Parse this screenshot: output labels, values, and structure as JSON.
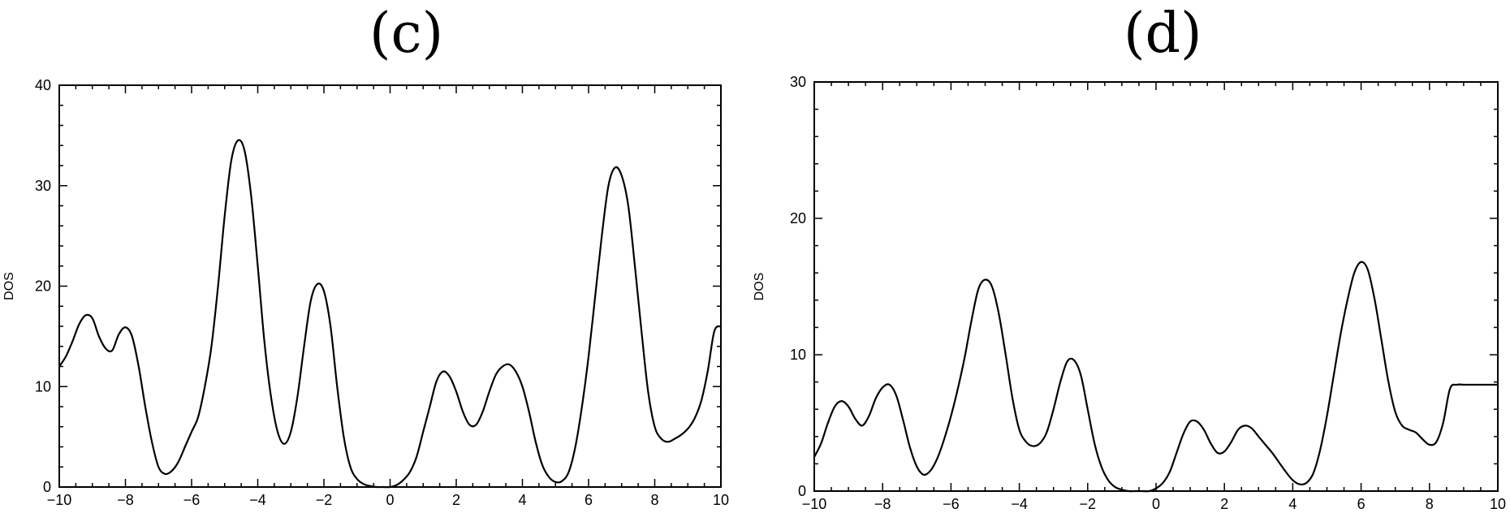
{
  "chart_data": [
    {
      "panel_label": "(c)",
      "type": "line",
      "title": "(c)",
      "xlabel": "",
      "ylabel": "DOS",
      "xlim": [
        -10,
        10
      ],
      "ylim": [
        0,
        40
      ],
      "xticks": [
        -10,
        -8,
        -6,
        -4,
        -2,
        0,
        2,
        4,
        6,
        8,
        10
      ],
      "yticks": [
        0,
        10,
        20,
        30,
        40
      ],
      "grid": false,
      "series": [
        {
          "x": [
            -10,
            -9.8,
            -9.6,
            -9.4,
            -9.2,
            -9.0,
            -8.8,
            -8.6,
            -8.4,
            -8.2,
            -8.0,
            -7.8,
            -7.6,
            -7.4,
            -7.2,
            -7.0,
            -6.8,
            -6.6,
            -6.4,
            -6.2,
            -6.0,
            -5.8,
            -5.6,
            -5.4,
            -5.2,
            -5.0,
            -4.8,
            -4.6,
            -4.4,
            -4.2,
            -4.0,
            -3.8,
            -3.6,
            -3.4,
            -3.2,
            -3.0,
            -2.8,
            -2.6,
            -2.4,
            -2.2,
            -2.0,
            -1.8,
            -1.6,
            -1.4,
            -1.2,
            -1.0,
            -0.8,
            -0.6,
            -0.4,
            -0.2,
            0.0,
            0.2,
            0.4,
            0.6,
            0.8,
            1.0,
            1.2,
            1.4,
            1.6,
            1.8,
            2.0,
            2.2,
            2.4,
            2.6,
            2.8,
            3.0,
            3.2,
            3.4,
            3.6,
            3.8,
            4.0,
            4.2,
            4.4,
            4.6,
            4.8,
            5.0,
            5.2,
            5.4,
            5.6,
            5.8,
            6.0,
            6.2,
            6.4,
            6.6,
            6.8,
            7.0,
            7.2,
            7.4,
            7.6,
            7.8,
            8.0,
            8.2,
            8.4,
            8.6,
            8.8,
            9.0,
            9.2,
            9.4,
            9.6,
            9.8,
            10.0
          ],
          "y": [
            12,
            13,
            14.5,
            16.2,
            17.1,
            16.8,
            15,
            13.8,
            13.6,
            15.2,
            15.9,
            15,
            12,
            8,
            4.5,
            2,
            1.3,
            1.6,
            2.5,
            4,
            5.5,
            7,
            10,
            14,
            20,
            27,
            32.5,
            34.5,
            33.5,
            29,
            22,
            14.5,
            9,
            5.5,
            4.3,
            5.5,
            9,
            14,
            18.5,
            20.2,
            19.5,
            16,
            10,
            5,
            2,
            0.8,
            0.3,
            0.1,
            0,
            0,
            0,
            0.2,
            0.7,
            1.5,
            3,
            5.5,
            8,
            10.5,
            11.5,
            11,
            9.5,
            7.5,
            6.2,
            6.2,
            7.5,
            9.5,
            11.2,
            12,
            12.2,
            11.5,
            10,
            7.5,
            4.5,
            2.2,
            1,
            0.5,
            0.6,
            1.5,
            4,
            8,
            13,
            19,
            25,
            30,
            31.8,
            31,
            28,
            22,
            15.5,
            9.5,
            6,
            4.8,
            4.5,
            4.8,
            5.2,
            5.8,
            6.8,
            8.5,
            11.5,
            15.5,
            16
          ]
        }
      ]
    },
    {
      "panel_label": "(d)",
      "type": "line",
      "title": "(d)",
      "xlabel": "",
      "ylabel": "DOS",
      "xlim": [
        -10,
        10
      ],
      "ylim": [
        0,
        30
      ],
      "xticks": [
        -10,
        -8,
        -6,
        -4,
        -2,
        0,
        2,
        4,
        6,
        8,
        10
      ],
      "yticks": [
        0,
        10,
        20,
        30
      ],
      "grid": false,
      "series": [
        {
          "x": [
            -10,
            -9.8,
            -9.6,
            -9.4,
            -9.2,
            -9.0,
            -8.8,
            -8.6,
            -8.4,
            -8.2,
            -8.0,
            -7.8,
            -7.6,
            -7.4,
            -7.2,
            -7.0,
            -6.8,
            -6.6,
            -6.4,
            -6.2,
            -6.0,
            -5.8,
            -5.6,
            -5.4,
            -5.2,
            -5.0,
            -4.8,
            -4.6,
            -4.4,
            -4.2,
            -4.0,
            -3.8,
            -3.6,
            -3.4,
            -3.2,
            -3.0,
            -2.8,
            -2.6,
            -2.4,
            -2.2,
            -2.0,
            -1.8,
            -1.6,
            -1.4,
            -1.2,
            -1.0,
            -0.8,
            -0.6,
            -0.4,
            -0.2,
            0.0,
            0.2,
            0.4,
            0.6,
            0.8,
            1.0,
            1.2,
            1.4,
            1.6,
            1.8,
            2.0,
            2.2,
            2.4,
            2.6,
            2.8,
            3.0,
            3.2,
            3.4,
            3.6,
            3.8,
            4.0,
            4.2,
            4.4,
            4.6,
            4.8,
            5.0,
            5.2,
            5.4,
            5.6,
            5.8,
            6.0,
            6.2,
            6.4,
            6.6,
            6.8,
            7.0,
            7.2,
            7.4,
            7.6,
            7.8,
            8.0,
            8.2,
            8.4,
            8.6,
            8.8,
            9.0,
            9.2,
            9.4,
            9.6,
            9.8,
            10.0
          ],
          "y": [
            2.5,
            3.5,
            5,
            6.2,
            6.6,
            6.2,
            5.3,
            4.8,
            5.5,
            6.8,
            7.6,
            7.8,
            7,
            5.2,
            3.2,
            1.8,
            1.2,
            1.5,
            2.4,
            3.8,
            5.5,
            7.5,
            9.8,
            12.5,
            14.8,
            15.5,
            15,
            13,
            10,
            6.8,
            4.5,
            3.6,
            3.3,
            3.5,
            4.3,
            6,
            8,
            9.5,
            9.6,
            8.5,
            6,
            3.5,
            1.8,
            0.8,
            0.3,
            0.1,
            0,
            0,
            0,
            0,
            0.2,
            0.6,
            1.4,
            2.8,
            4.2,
            5.1,
            5.1,
            4.5,
            3.5,
            2.8,
            2.9,
            3.6,
            4.5,
            4.8,
            4.6,
            4,
            3.4,
            2.8,
            2.1,
            1.4,
            0.8,
            0.5,
            0.6,
            1.3,
            3,
            5.5,
            8.5,
            11.5,
            14,
            16,
            16.8,
            16.2,
            14,
            11,
            8,
            5.8,
            4.8,
            4.5,
            4.3,
            3.8,
            3.4,
            3.6,
            5,
            7.5,
            7.8,
            7.8,
            7.8,
            7.8,
            7.8,
            7.8,
            7.8
          ]
        }
      ]
    }
  ]
}
